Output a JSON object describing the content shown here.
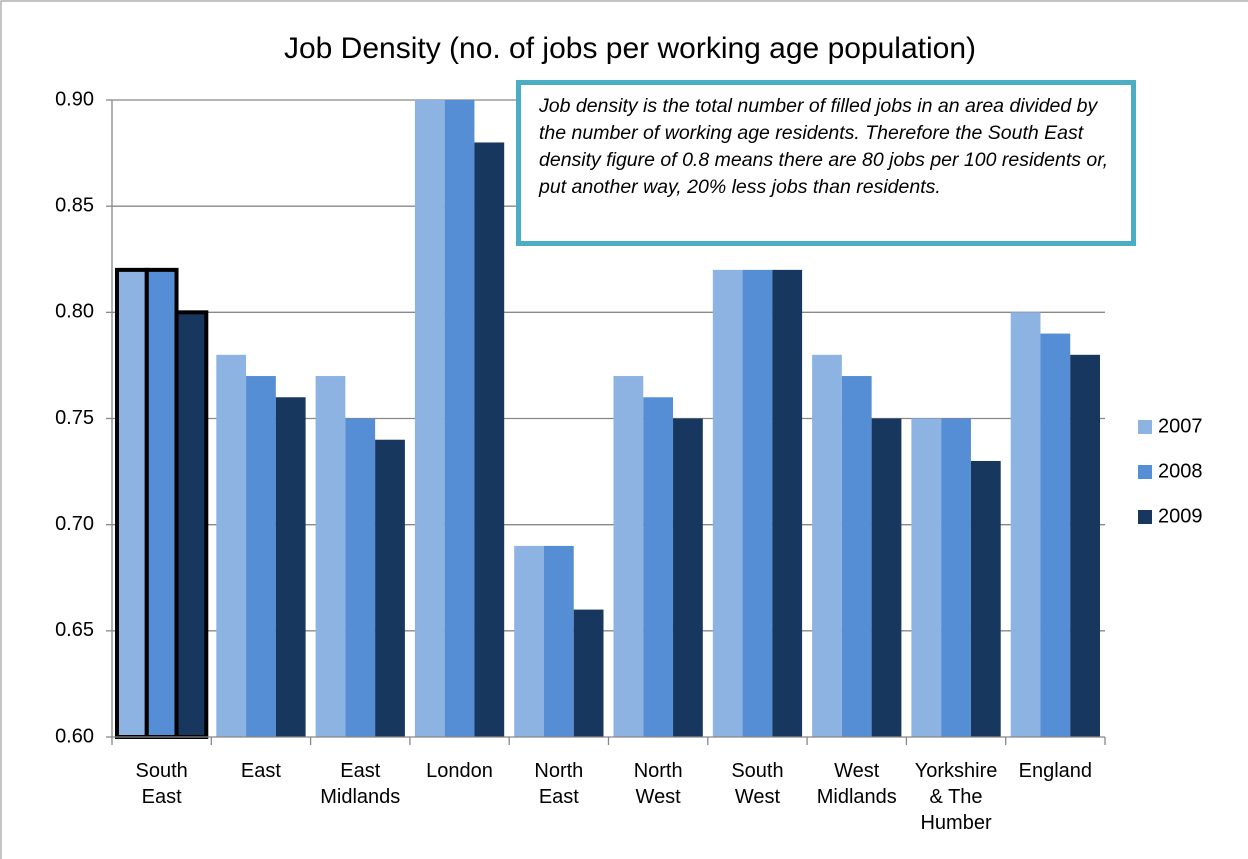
{
  "chart_data": {
    "type": "bar",
    "title": "Job Density (no. of jobs per working age population)",
    "annotation": "Job density is the total number of filled jobs in an area divided by the number of working age residents.  Therefore the South East density figure of 0.8 means there are 80 jobs per 100 residents or, put another way, 20% less jobs than residents.",
    "categories": [
      "South\nEast",
      "East",
      "East\nMidlands",
      "London",
      "North\nEast",
      "North\nWest",
      "South\nWest",
      "West\nMidlands",
      "Yorkshire\n& The\nHumber",
      "England"
    ],
    "series": [
      {
        "name": "2007",
        "color": "#8db3e2",
        "values": [
          0.82,
          0.78,
          0.77,
          0.9,
          0.69,
          0.77,
          0.82,
          0.78,
          0.75,
          0.8
        ]
      },
      {
        "name": "2008",
        "color": "#558ed5",
        "values": [
          0.82,
          0.77,
          0.75,
          0.9,
          0.69,
          0.76,
          0.82,
          0.77,
          0.75,
          0.79
        ]
      },
      {
        "name": "2009",
        "color": "#17375e",
        "values": [
          0.8,
          0.76,
          0.74,
          0.88,
          0.66,
          0.75,
          0.82,
          0.75,
          0.73,
          0.78
        ]
      }
    ],
    "ylim": [
      0.6,
      0.9
    ],
    "yticks": [
      {
        "value": 0.6,
        "label": "0.60"
      },
      {
        "value": 0.65,
        "label": "0.65"
      },
      {
        "value": 0.7,
        "label": "0.70"
      },
      {
        "value": 0.75,
        "label": "0.75"
      },
      {
        "value": 0.8,
        "label": "0.80"
      },
      {
        "value": 0.85,
        "label": "0.85"
      },
      {
        "value": 0.9,
        "label": "0.90"
      }
    ],
    "grid": true,
    "legend": "right",
    "highlight_category": 0
  }
}
